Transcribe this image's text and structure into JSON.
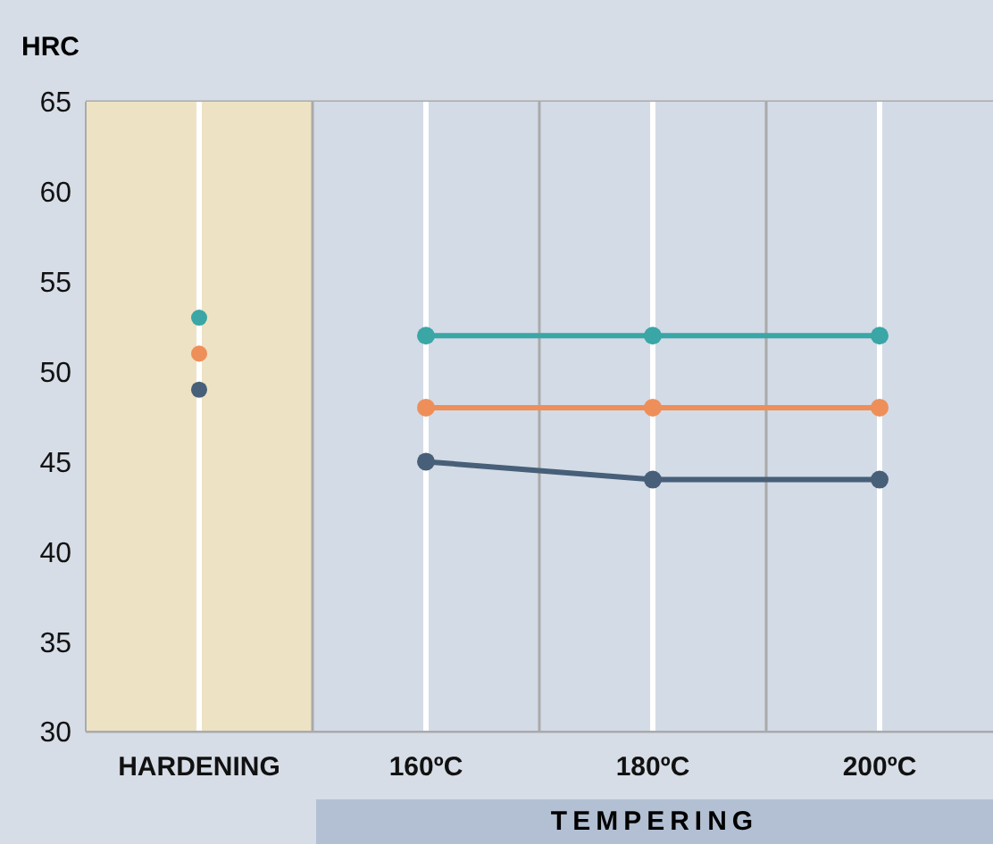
{
  "chart_data": {
    "type": "line",
    "ylabel": "HRC",
    "categories": [
      "HARDENING",
      "160ºC",
      "180ºC",
      "200ºC"
    ],
    "series": [
      {
        "type": "scatter",
        "color": "#3aa6a6",
        "values": [
          53,
          null,
          null,
          null
        ]
      },
      {
        "type": "scatter",
        "color": "#ee8f5a",
        "values": [
          51,
          null,
          null,
          null
        ]
      },
      {
        "type": "scatter",
        "color": "#475f78",
        "values": [
          49,
          null,
          null,
          null
        ]
      },
      {
        "type": "line",
        "color": "#3aa6a6",
        "values": [
          null,
          52,
          52,
          52
        ]
      },
      {
        "type": "line",
        "color": "#ee8f5a",
        "values": [
          null,
          48,
          48,
          48
        ]
      },
      {
        "type": "line",
        "color": "#475f78",
        "values": [
          null,
          45,
          44,
          44
        ]
      }
    ],
    "ylim": [
      30,
      65
    ],
    "yticks": [
      30,
      35,
      40,
      45,
      50,
      55,
      60,
      65
    ],
    "bands": [
      {
        "axis": "x",
        "from": "HARDENING",
        "to": "HARDENING",
        "color": "#ede3c4"
      },
      {
        "axis": "x",
        "from": "160ºC",
        "to": "200ºC",
        "label": "TEMPERING",
        "color": "#d3dbe6"
      }
    ],
    "grid": true,
    "marker": "circle"
  }
}
